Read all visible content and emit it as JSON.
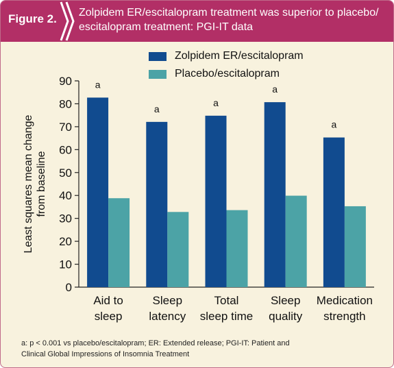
{
  "figure": {
    "label": "Figure 2.",
    "title_lines": [
      "Zolpidem ER/escitalopram treatment was superior to placebo/",
      "escitalopram treatment: PGI-IT data"
    ]
  },
  "footnote_lines": [
    "a: p < 0.001 vs placebo/escitalopram; ER: Extended release; PGI-IT: Patient and",
    "Clinical Global Impressions of Insomnia Treatment"
  ],
  "colors": {
    "header": "#b22f66",
    "background": "#f8f2de",
    "zolpidem": "#114b8f",
    "placebo": "#4ca3a6"
  },
  "chart_data": {
    "type": "bar",
    "ylabel_lines": [
      "Least squares mean change",
      "from baseline"
    ],
    "xlabel": "",
    "ylim": [
      0,
      90
    ],
    "yticks": [
      0,
      10,
      20,
      30,
      40,
      50,
      60,
      70,
      80,
      90
    ],
    "grid": false,
    "legend_position": "top-center",
    "categories": [
      [
        "Aid to",
        "sleep"
      ],
      [
        "Sleep",
        "latency"
      ],
      [
        "Total",
        "sleep time"
      ],
      [
        "Sleep",
        "quality"
      ],
      [
        "Medication",
        "strength"
      ]
    ],
    "series": [
      {
        "name": "Zolpidem ER/escitalopram",
        "color": "#114b8f",
        "values": [
          82.7,
          72.1,
          74.8,
          80.7,
          65.3
        ],
        "annotations": [
          "a",
          "a",
          "a",
          "a",
          "a"
        ]
      },
      {
        "name": "Placebo/escitalopram",
        "color": "#4ca3a6",
        "values": [
          38.8,
          32.8,
          33.6,
          39.9,
          35.3
        ],
        "annotations": [
          "",
          "",
          "",
          "",
          ""
        ]
      }
    ]
  }
}
